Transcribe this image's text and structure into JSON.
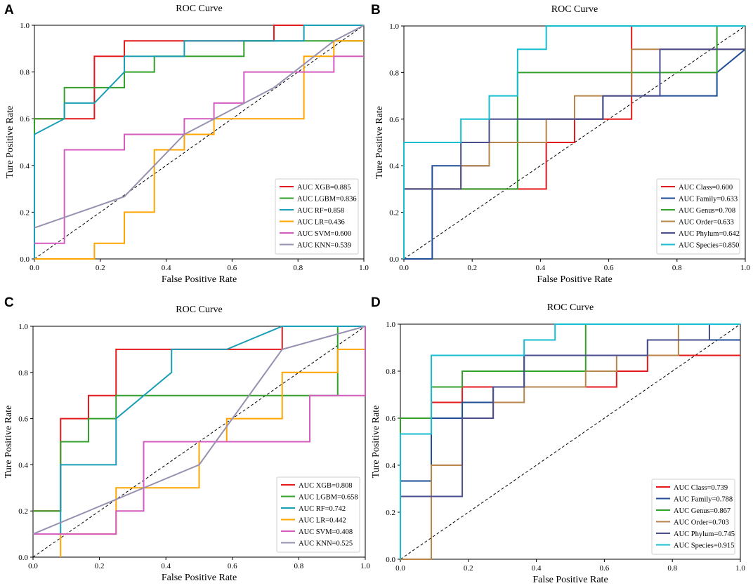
{
  "chart_data": [
    {
      "panel": "A",
      "type": "line",
      "title": "ROC Curve",
      "xlabel": "False Positive Rate",
      "ylabel": "Ture Positive Rate",
      "xlim": [
        0,
        1
      ],
      "ylim": [
        0,
        1
      ],
      "xticks": [
        "0.0",
        "0.2",
        "0.4",
        "0.6",
        "0.8",
        "1.0"
      ],
      "yticks": [
        "0.0",
        "0.2",
        "0.4",
        "0.6",
        "0.8",
        "1.0"
      ],
      "legend_position": "bottom-right",
      "series": [
        {
          "name": "AUC XGB=0.885",
          "color": "#e41a1c",
          "x": [
            0,
            0,
            0.091,
            0.091,
            0.182,
            0.182,
            0.273,
            0.273,
            0.727,
            0.727,
            0.818,
            0.818,
            1
          ],
          "y": [
            0,
            0.6,
            0.6,
            0.6,
            0.6,
            0.867,
            0.867,
            0.933,
            0.933,
            1,
            1,
            1,
            1
          ]
        },
        {
          "name": "AUC LGBM=0.836",
          "color": "#33a02c",
          "x": [
            0,
            0,
            0.091,
            0.091,
            0.273,
            0.273,
            0.364,
            0.364,
            0.636,
            0.636,
            1
          ],
          "y": [
            0,
            0.6,
            0.6,
            0.733,
            0.733,
            0.8,
            0.8,
            0.867,
            0.867,
            0.933,
            0.933
          ]
        },
        {
          "name": "AUC RF=0.858",
          "color": "#1a9eb5",
          "x": [
            0,
            0,
            0.091,
            0.091,
            0.182,
            0.273,
            0.273,
            0.455,
            0.455,
            0.818,
            0.818,
            1
          ],
          "y": [
            0,
            0.533,
            0.6,
            0.667,
            0.667,
            0.8,
            0.867,
            0.867,
            0.933,
            0.933,
            1,
            1
          ]
        },
        {
          "name": "AUC LR=0.436",
          "color": "#ffa500",
          "x": [
            0,
            0.182,
            0.182,
            0.273,
            0.273,
            0.364,
            0.364,
            0.455,
            0.455,
            0.545,
            0.545,
            0.818,
            0.818,
            0.909,
            0.909,
            1
          ],
          "y": [
            0,
            0,
            0.067,
            0.067,
            0.2,
            0.2,
            0.467,
            0.467,
            0.533,
            0.533,
            0.6,
            0.6,
            0.867,
            0.867,
            0.933,
            0.933
          ]
        },
        {
          "name": "AUC SVM=0.600",
          "color": "#d45cbe",
          "x": [
            0,
            0.091,
            0.091,
            0.273,
            0.273,
            0.455,
            0.455,
            0.545,
            0.545,
            0.636,
            0.636,
            0.727,
            0.727,
            0.909,
            0.909,
            1
          ],
          "y": [
            0.067,
            0.067,
            0.467,
            0.467,
            0.533,
            0.533,
            0.6,
            0.6,
            0.667,
            0.667,
            0.8,
            0.8,
            0.8,
            0.8,
            0.867,
            0.867
          ]
        },
        {
          "name": "AUC KNN=0.539",
          "color": "#9890b0",
          "x": [
            0,
            0.273,
            0.455,
            0.727,
            0.909,
            1
          ],
          "y": [
            0.133,
            0.267,
            0.533,
            0.733,
            0.933,
            1
          ]
        }
      ]
    },
    {
      "panel": "B",
      "type": "line",
      "title": "ROC Curve",
      "xlabel": "False Positive Rate",
      "ylabel": "Ture Positive Rate",
      "xlim": [
        0,
        1
      ],
      "ylim": [
        0,
        1
      ],
      "xticks": [
        "0.0",
        "0.2",
        "0.4",
        "0.6",
        "0.8",
        "1.0"
      ],
      "yticks": [
        "0.0",
        "0.2",
        "0.4",
        "0.6",
        "0.8",
        "1.0"
      ],
      "legend_position": "bottom-right",
      "series": [
        {
          "name": "AUC Class=0.600",
          "color": "#e41a1c",
          "x": [
            0,
            0,
            0.25,
            0.25,
            0.417,
            0.417,
            0.5,
            0.5,
            0.667,
            0.667,
            1
          ],
          "y": [
            0,
            0.3,
            0.3,
            0.3,
            0.3,
            0.5,
            0.5,
            0.6,
            0.6,
            1,
            1
          ]
        },
        {
          "name": "AUC Family=0.633",
          "color": "#1f4e96",
          "x": [
            0,
            0.083,
            0.083,
            0.25,
            0.25,
            0.333,
            0.333,
            0.583,
            0.583,
            0.917,
            0.917,
            1
          ],
          "y": [
            0,
            0,
            0.4,
            0.4,
            0.5,
            0.5,
            0.6,
            0.6,
            0.7,
            0.7,
            0.8,
            0.9
          ]
        },
        {
          "name": "AUC Genus=0.708",
          "color": "#33a02c",
          "x": [
            0,
            0,
            0.333,
            0.333,
            0.917,
            0.917,
            1
          ],
          "y": [
            0,
            0.3,
            0.3,
            0.8,
            0.8,
            1,
            1
          ]
        },
        {
          "name": "AUC Order=0.633",
          "color": "#b8864a",
          "x": [
            0,
            0,
            0.167,
            0.167,
            0.25,
            0.25,
            0.417,
            0.417,
            0.5,
            0.5,
            0.667,
            0.667,
            0.75,
            0.75,
            1
          ],
          "y": [
            0,
            0.3,
            0.3,
            0.4,
            0.4,
            0.5,
            0.5,
            0.6,
            0.6,
            0.7,
            0.7,
            0.9,
            0.9,
            0.9,
            0.9
          ]
        },
        {
          "name": "AUC Phylum=0.642",
          "color": "#4a4e8f",
          "x": [
            0,
            0,
            0.167,
            0.167,
            0.25,
            0.25,
            0.583,
            0.583,
            0.75,
            0.75,
            1
          ],
          "y": [
            0,
            0.3,
            0.3,
            0.5,
            0.5,
            0.6,
            0.6,
            0.7,
            0.7,
            0.9,
            0.9
          ]
        },
        {
          "name": "AUC Species=0.850",
          "color": "#17becf",
          "x": [
            0,
            0,
            0.167,
            0.167,
            0.25,
            0.25,
            0.333,
            0.333,
            0.417,
            0.417,
            1
          ],
          "y": [
            0,
            0.5,
            0.5,
            0.6,
            0.6,
            0.7,
            0.7,
            0.9,
            0.9,
            1,
            1
          ]
        }
      ]
    },
    {
      "panel": "C",
      "type": "line",
      "title": "ROC Curve",
      "xlabel": "False Positive Rate",
      "ylabel": "Ture Positive Rate",
      "xlim": [
        0,
        1
      ],
      "ylim": [
        0,
        1
      ],
      "xticks": [
        "0.0",
        "0.2",
        "0.4",
        "0.6",
        "0.8",
        "1.0"
      ],
      "yticks": [
        "0.0",
        "0.2",
        "0.4",
        "0.6",
        "0.8",
        "1.0"
      ],
      "legend_position": "bottom-right",
      "series": [
        {
          "name": "AUC XGB=0.808",
          "color": "#e41a1c",
          "x": [
            0,
            0.083,
            0.083,
            0.167,
            0.167,
            0.25,
            0.25,
            0.75,
            0.75,
            1
          ],
          "y": [
            0.2,
            0.2,
            0.6,
            0.6,
            0.7,
            0.7,
            0.9,
            0.9,
            1,
            1
          ]
        },
        {
          "name": "AUC LGBM=0.658",
          "color": "#33a02c",
          "x": [
            0,
            0.083,
            0.083,
            0.167,
            0.167,
            0.25,
            0.25,
            0.917,
            0.917,
            1
          ],
          "y": [
            0.2,
            0.2,
            0.5,
            0.5,
            0.6,
            0.6,
            0.7,
            0.7,
            1,
            1
          ]
        },
        {
          "name": "AUC RF=0.742",
          "color": "#1a9eb5",
          "x": [
            0.083,
            0.083,
            0.25,
            0.25,
            0.417,
            0.417,
            0.583,
            0.75,
            1
          ],
          "y": [
            0.1,
            0.4,
            0.4,
            0.6,
            0.8,
            0.9,
            0.9,
            1,
            1
          ]
        },
        {
          "name": "AUC LR=0.442",
          "color": "#ffa500",
          "x": [
            0.083,
            0.083,
            0.25,
            0.25,
            0.5,
            0.5,
            0.583,
            0.583,
            0.75,
            0.75,
            0.917,
            0.917,
            1
          ],
          "y": [
            0,
            0.1,
            0.1,
            0.3,
            0.3,
            0.5,
            0.5,
            0.6,
            0.6,
            0.8,
            0.8,
            0.9,
            0.9
          ]
        },
        {
          "name": "AUC SVM=0.408",
          "color": "#d45cbe",
          "x": [
            0,
            0.25,
            0.25,
            0.333,
            0.333,
            0.833,
            0.833,
            1,
            1
          ],
          "y": [
            0.1,
            0.1,
            0.2,
            0.2,
            0.5,
            0.5,
            0.7,
            0.7,
            1
          ]
        },
        {
          "name": "AUC KNN=0.525",
          "color": "#9890b0",
          "x": [
            0,
            0.5,
            0.75,
            1
          ],
          "y": [
            0.1,
            0.4,
            0.9,
            1
          ]
        }
      ]
    },
    {
      "panel": "D",
      "type": "line",
      "title": "ROC Curve",
      "xlabel": "False Positive Rate",
      "ylabel": "Ture Positive Rate",
      "xlim": [
        0,
        1
      ],
      "ylim": [
        0,
        1
      ],
      "xticks": [
        "0.0",
        "0.2",
        "0.4",
        "0.6",
        "0.8",
        "1.0"
      ],
      "yticks": [
        "0.0",
        "0.2",
        "0.4",
        "0.6",
        "0.8",
        "1.0"
      ],
      "legend_position": "bottom-right",
      "series": [
        {
          "name": "AUC Class=0.739",
          "color": "#e41a1c",
          "x": [
            0.091,
            0.091,
            0.182,
            0.182,
            0.636,
            0.636,
            0.727,
            0.727,
            1
          ],
          "y": [
            0.6,
            0.667,
            0.667,
            0.733,
            0.733,
            0.8,
            0.8,
            0.867,
            0.867
          ]
        },
        {
          "name": "AUC Family=0.788",
          "color": "#1f4e96",
          "x": [
            0,
            0,
            0.091,
            0.091,
            0.182,
            0.182,
            0.273,
            0.273,
            0.364,
            0.364,
            0.727,
            0.727,
            1
          ],
          "y": [
            0,
            0.333,
            0.333,
            0.6,
            0.6,
            0.667,
            0.667,
            0.733,
            0.733,
            0.867,
            0.867,
            0.933,
            0.933
          ]
        },
        {
          "name": "AUC Genus=0.867",
          "color": "#33a02c",
          "x": [
            0,
            0,
            0.091,
            0.091,
            0.182,
            0.182,
            0.545,
            0.545,
            1
          ],
          "y": [
            0,
            0.6,
            0.6,
            0.733,
            0.733,
            0.8,
            0.8,
            1,
            1
          ]
        },
        {
          "name": "AUC Order=0.703",
          "color": "#b8864a",
          "x": [
            0,
            0.091,
            0.091,
            0.182,
            0.182,
            0.273,
            0.273,
            0.364,
            0.364,
            0.545,
            0.545,
            0.636,
            0.636,
            0.818,
            0.818,
            1
          ],
          "y": [
            0,
            0,
            0.4,
            0.4,
            0.6,
            0.6,
            0.667,
            0.667,
            0.733,
            0.733,
            0.8,
            0.8,
            0.867,
            0.867,
            1,
            1
          ]
        },
        {
          "name": "AUC Phylum=0.745",
          "color": "#4a4e8f",
          "x": [
            0,
            0.182,
            0.182,
            0.273,
            0.273,
            0.364,
            0.364,
            0.727,
            0.727,
            0.909,
            0.909,
            1
          ],
          "y": [
            0.267,
            0.267,
            0.6,
            0.6,
            0.733,
            0.733,
            0.867,
            0.867,
            0.933,
            0.933,
            1,
            1
          ]
        },
        {
          "name": "AUC Species=0.915",
          "color": "#17becf",
          "x": [
            0,
            0,
            0.091,
            0.091,
            0.364,
            0.364,
            0.455,
            0.455,
            1
          ],
          "y": [
            0,
            0.533,
            0.533,
            0.867,
            0.867,
            0.933,
            0.933,
            1,
            1
          ]
        }
      ]
    }
  ]
}
